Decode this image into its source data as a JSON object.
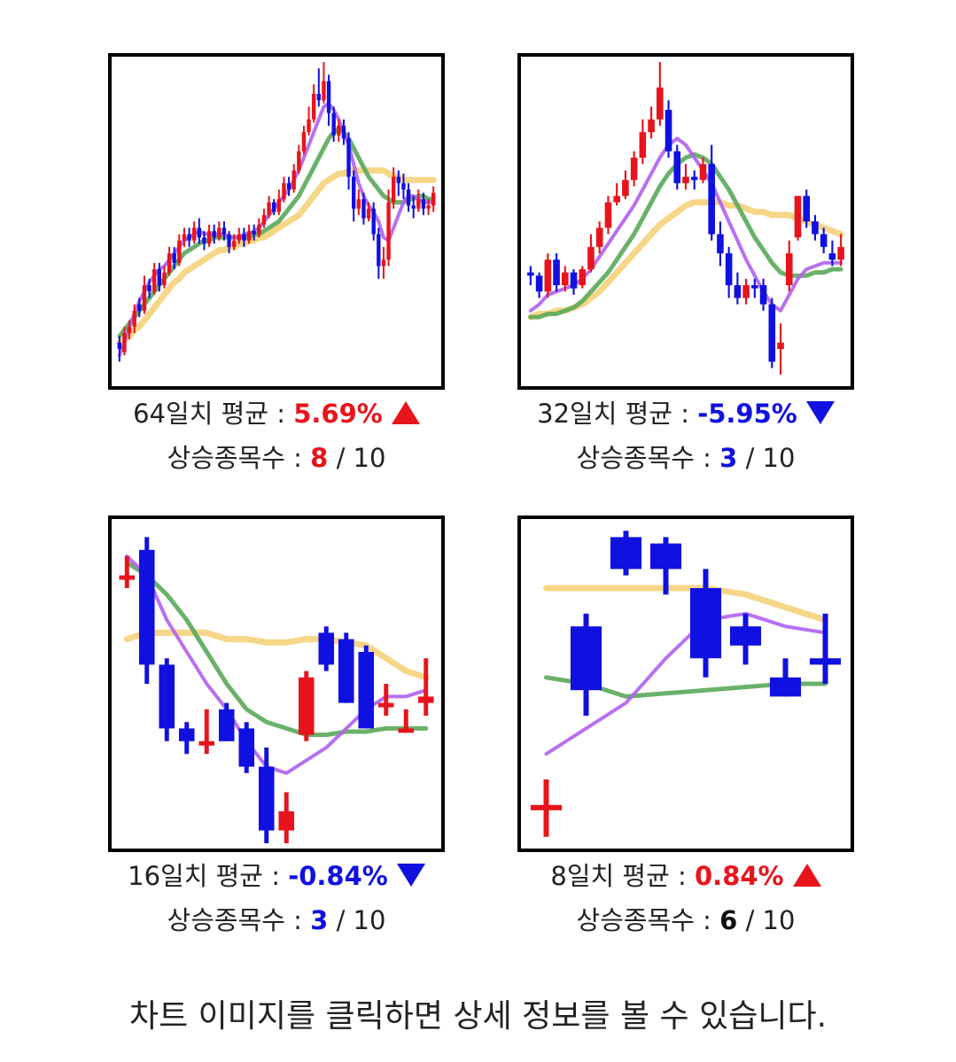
{
  "colors": {
    "up": "#e8141c",
    "down": "#1010e0",
    "ma_short": "#b060f0",
    "ma_mid": "#5aa85a",
    "ma_long": "#f5d27a",
    "neutral": "#111111"
  },
  "summaries": [
    {
      "period_label": "64일치 평균 :",
      "avg": "5.69%",
      "direction": "up",
      "rise_label": "상승종목수 :",
      "rise_count": "8",
      "total": "/ 10"
    },
    {
      "period_label": "32일치 평균 :",
      "avg": "-5.95%",
      "direction": "down",
      "rise_label": "상승종목수 :",
      "rise_count": "3",
      "total": "/ 10"
    },
    {
      "period_label": "16일치 평균 :",
      "avg": "-0.84%",
      "direction": "down",
      "rise_label": "상승종목수 :",
      "rise_count": "3",
      "total": "/ 10"
    },
    {
      "period_label": "8일치 평균 :",
      "avg": "0.84%",
      "direction": "up",
      "rise_label": "상승종목수 :",
      "rise_count": "6",
      "total": "/ 10"
    }
  ],
  "footer_text": "차트 이미지를 클릭하면 상세 정보를 볼 수 있습니다.",
  "chart_data": [
    {
      "type": "candlestick",
      "ylim": [
        0,
        100
      ],
      "candles": [
        [
          12,
          10,
          14,
          6
        ],
        [
          9,
          15,
          17,
          8
        ],
        [
          15,
          17,
          19,
          13
        ],
        [
          17,
          22,
          24,
          15
        ],
        [
          24,
          22,
          26,
          20
        ],
        [
          22,
          30,
          33,
          21
        ],
        [
          30,
          28,
          32,
          26
        ],
        [
          28,
          35,
          37,
          27
        ],
        [
          35,
          30,
          37,
          28
        ],
        [
          30,
          34,
          36,
          29
        ],
        [
          34,
          40,
          42,
          33
        ],
        [
          40,
          37,
          42,
          35
        ],
        [
          37,
          44,
          46,
          36
        ],
        [
          44,
          46,
          48,
          42
        ],
        [
          46,
          44,
          48,
          42
        ],
        [
          44,
          48,
          50,
          43
        ],
        [
          48,
          45,
          51,
          43
        ],
        [
          45,
          43,
          47,
          41
        ],
        [
          43,
          47,
          49,
          42
        ],
        [
          47,
          45,
          49,
          43
        ],
        [
          45,
          48,
          50,
          44
        ],
        [
          48,
          46,
          50,
          44
        ],
        [
          46,
          42,
          47,
          40
        ],
        [
          42,
          44,
          46,
          41
        ],
        [
          44,
          46,
          48,
          43
        ],
        [
          46,
          44,
          48,
          42
        ],
        [
          44,
          47,
          49,
          43
        ],
        [
          47,
          46,
          49,
          44
        ],
        [
          46,
          49,
          51,
          45
        ],
        [
          49,
          52,
          54,
          48
        ],
        [
          52,
          56,
          58,
          51
        ],
        [
          56,
          53,
          57,
          52
        ],
        [
          53,
          57,
          60,
          52
        ],
        [
          57,
          62,
          64,
          56
        ],
        [
          62,
          60,
          64,
          58
        ],
        [
          60,
          66,
          68,
          59
        ],
        [
          66,
          72,
          74,
          65
        ],
        [
          72,
          78,
          80,
          71
        ],
        [
          78,
          82,
          86,
          77
        ],
        [
          82,
          90,
          93,
          81
        ],
        [
          90,
          88,
          98,
          86
        ],
        [
          88,
          94,
          100,
          87
        ],
        [
          94,
          84,
          96,
          80
        ],
        [
          84,
          77,
          86,
          75
        ],
        [
          77,
          80,
          82,
          75
        ],
        [
          80,
          76,
          82,
          74
        ],
        [
          76,
          64,
          78,
          60
        ],
        [
          64,
          54,
          66,
          50
        ],
        [
          54,
          57,
          60,
          52
        ],
        [
          57,
          51,
          59,
          49
        ],
        [
          51,
          54,
          56,
          50
        ],
        [
          54,
          46,
          56,
          44
        ],
        [
          46,
          36,
          48,
          32
        ],
        [
          36,
          38,
          42,
          32
        ],
        [
          38,
          56,
          60,
          36
        ],
        [
          56,
          64,
          67,
          54
        ],
        [
          64,
          62,
          66,
          58
        ],
        [
          62,
          60,
          65,
          57
        ],
        [
          60,
          55,
          62,
          53
        ],
        [
          55,
          54,
          58,
          51
        ],
        [
          54,
          57,
          60,
          53
        ],
        [
          57,
          54,
          59,
          52
        ],
        [
          54,
          55,
          57,
          52
        ],
        [
          55,
          59,
          61,
          53
        ]
      ],
      "ma": [
        {
          "name": "ma_short",
          "values": [
            8,
            12,
            17,
            21,
            25,
            28,
            31,
            33,
            35,
            36,
            38,
            40,
            42,
            44,
            45,
            46,
            47,
            46,
            46,
            46,
            46,
            46,
            45,
            45,
            45,
            46,
            46,
            47,
            48,
            50,
            52,
            54,
            56,
            58,
            60,
            63,
            66,
            70,
            74,
            78,
            82,
            86,
            87,
            85,
            82,
            78,
            74,
            68,
            62,
            58,
            55,
            53,
            50,
            45,
            44,
            48,
            52,
            56,
            58,
            58,
            57,
            56,
            56,
            56
          ]
        },
        {
          "name": "ma_mid",
          "values": [
            14,
            16,
            18,
            20,
            22,
            24,
            26,
            28,
            30,
            32,
            34,
            36,
            38,
            40,
            41,
            42,
            43,
            44,
            44,
            45,
            45,
            45,
            45,
            45,
            45,
            45,
            45,
            46,
            46,
            47,
            48,
            49,
            50,
            52,
            54,
            56,
            58,
            61,
            64,
            67,
            70,
            73,
            76,
            78,
            79,
            78,
            76,
            73,
            70,
            67,
            64,
            62,
            60,
            58,
            57,
            56,
            56,
            56,
            57,
            57,
            58,
            58,
            57,
            57
          ]
        },
        {
          "name": "ma_long",
          "values": [
            12,
            13,
            14,
            16,
            17,
            19,
            21,
            23,
            25,
            27,
            29,
            31,
            32,
            34,
            35,
            36,
            37,
            38,
            39,
            40,
            41,
            41,
            42,
            42,
            43,
            43,
            44,
            44,
            45,
            45,
            46,
            47,
            48,
            49,
            50,
            51,
            52,
            54,
            56,
            58,
            60,
            62,
            63,
            64,
            65,
            65,
            66,
            66,
            66,
            66,
            66,
            66,
            66,
            66,
            65,
            64,
            64,
            63,
            63,
            63,
            63,
            63,
            63,
            63
          ]
        }
      ]
    },
    {
      "type": "candlestick",
      "ylim": [
        0,
        100
      ],
      "candles": [
        [
          34,
          33,
          36,
          30
        ],
        [
          33,
          28,
          34,
          26
        ],
        [
          28,
          38,
          40,
          26
        ],
        [
          38,
          30,
          40,
          28
        ],
        [
          30,
          34,
          36,
          28
        ],
        [
          34,
          29,
          35,
          27
        ],
        [
          30,
          35,
          36,
          29
        ],
        [
          35,
          42,
          46,
          34
        ],
        [
          42,
          48,
          50,
          40
        ],
        [
          48,
          56,
          58,
          46
        ],
        [
          56,
          58,
          62,
          55
        ],
        [
          58,
          63,
          66,
          57
        ],
        [
          63,
          70,
          72,
          61
        ],
        [
          70,
          78,
          82,
          68
        ],
        [
          78,
          82,
          86,
          76
        ],
        [
          82,
          92,
          100,
          80
        ],
        [
          85,
          72,
          88,
          70
        ],
        [
          72,
          62,
          74,
          60
        ],
        [
          62,
          64,
          68,
          60
        ],
        [
          64,
          63,
          66,
          60
        ],
        [
          63,
          68,
          70,
          62
        ],
        [
          68,
          46,
          74,
          44
        ],
        [
          46,
          40,
          50,
          36
        ],
        [
          40,
          30,
          42,
          26
        ],
        [
          30,
          26,
          34,
          24
        ],
        [
          26,
          30,
          32,
          24
        ],
        [
          30,
          29,
          32,
          26
        ],
        [
          30,
          24,
          32,
          22
        ],
        [
          24,
          6,
          26,
          4
        ],
        [
          10,
          12,
          18,
          2
        ],
        [
          30,
          40,
          44,
          28
        ],
        [
          45,
          58,
          58,
          44
        ],
        [
          58,
          50,
          60,
          48
        ],
        [
          50,
          46,
          52,
          44
        ],
        [
          46,
          42,
          48,
          40
        ],
        [
          40,
          38,
          44,
          36
        ],
        [
          38,
          42,
          46,
          36
        ]
      ],
      "ma": [
        {
          "name": "ma_short",
          "values": [
            22,
            24,
            27,
            28,
            29,
            30,
            32,
            35,
            39,
            43,
            47,
            51,
            55,
            60,
            65,
            70,
            74,
            76,
            74,
            70,
            66,
            62,
            56,
            50,
            44,
            38,
            33,
            28,
            24,
            22,
            27,
            32,
            35,
            36,
            37,
            37,
            37
          ]
        },
        {
          "name": "ma_mid",
          "values": [
            20,
            20,
            21,
            21,
            22,
            23,
            25,
            28,
            31,
            34,
            38,
            42,
            46,
            51,
            56,
            61,
            65,
            68,
            70,
            71,
            70,
            68,
            64,
            60,
            55,
            50,
            45,
            41,
            37,
            34,
            33,
            33,
            33,
            34,
            34,
            35,
            35
          ]
        },
        {
          "name": "ma_long",
          "values": [
            20,
            21,
            21,
            22,
            22,
            23,
            24,
            26,
            28,
            31,
            34,
            37,
            40,
            43,
            46,
            49,
            51,
            53,
            55,
            56,
            56,
            56,
            56,
            55,
            55,
            54,
            53,
            53,
            52,
            52,
            52,
            51,
            50,
            49,
            48,
            47,
            46
          ]
        }
      ]
    },
    {
      "type": "candlestick",
      "ylim": [
        0,
        100
      ],
      "candles": [
        [
          84,
          84,
          90,
          80
        ],
        [
          92,
          56,
          96,
          50
        ],
        [
          56,
          36,
          58,
          32
        ],
        [
          36,
          32,
          38,
          28
        ],
        [
          32,
          32,
          42,
          28
        ],
        [
          42,
          32,
          44,
          32
        ],
        [
          36,
          24,
          38,
          22
        ],
        [
          24,
          4,
          30,
          0
        ],
        [
          4,
          10,
          16,
          0
        ],
        [
          34,
          52,
          54,
          32
        ],
        [
          66,
          56,
          68,
          54
        ],
        [
          64,
          44,
          66,
          44
        ],
        [
          60,
          36,
          62,
          36
        ],
        [
          44,
          44,
          50,
          40
        ],
        [
          36,
          36,
          42,
          36
        ],
        [
          44,
          46,
          58,
          40
        ]
      ],
      "ma": [
        {
          "name": "ma_short",
          "values": [
            90,
            84,
            70,
            60,
            50,
            42,
            32,
            24,
            22,
            26,
            30,
            36,
            42,
            46,
            46,
            48
          ]
        },
        {
          "name": "ma_mid",
          "values": [
            88,
            84,
            78,
            70,
            60,
            50,
            42,
            38,
            36,
            34,
            34,
            35,
            35,
            36,
            36,
            36
          ]
        },
        {
          "name": "ma_long",
          "values": [
            64,
            66,
            66,
            66,
            66,
            64,
            64,
            63,
            63,
            64,
            64,
            63,
            62,
            58,
            54,
            52
          ]
        }
      ]
    },
    {
      "type": "candlestick",
      "ylim": [
        0,
        100
      ],
      "candles": [
        [
          12,
          12,
          20,
          2
        ],
        [
          68,
          48,
          72,
          40
        ],
        [
          96,
          86,
          98,
          84
        ],
        [
          94,
          86,
          96,
          78
        ],
        [
          80,
          58,
          86,
          52
        ],
        [
          68,
          62,
          72,
          56
        ],
        [
          52,
          46,
          58,
          46
        ],
        [
          58,
          56,
          72,
          50
        ]
      ],
      "ma": [
        {
          "name": "ma_short",
          "values": [
            28,
            36,
            44,
            58,
            70,
            72,
            68,
            66
          ]
        },
        {
          "name": "ma_mid",
          "values": [
            52,
            50,
            46,
            47,
            48,
            49,
            50,
            50
          ]
        },
        {
          "name": "ma_long",
          "values": [
            80,
            80,
            80,
            80,
            80,
            78,
            74,
            70
          ]
        }
      ]
    }
  ]
}
